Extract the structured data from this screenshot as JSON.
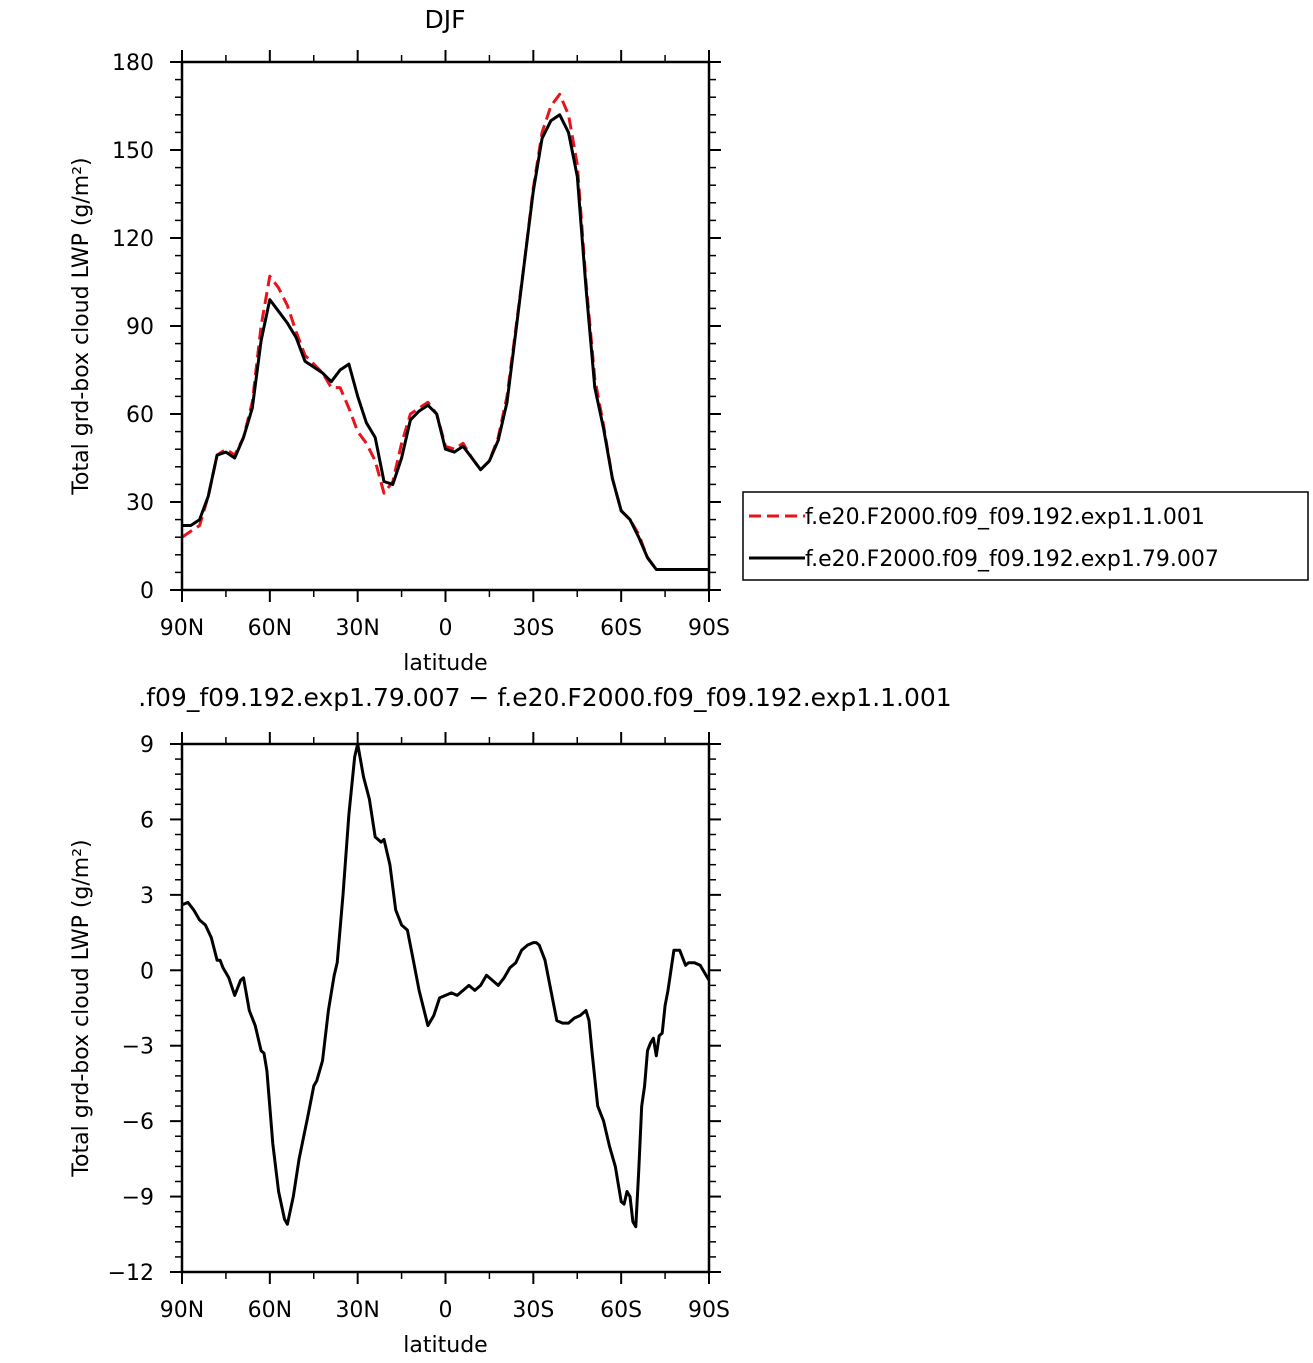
{
  "chart_data": [
    {
      "type": "line",
      "title": "DJF",
      "xlabel": "latitude",
      "ylabel": "Total grd-box cloud LWP (g/m²)",
      "xlim": [
        90,
        -90
      ],
      "ylim": [
        0,
        180
      ],
      "x_tick_values": [
        90,
        60,
        30,
        0,
        -30,
        -60,
        -90
      ],
      "x_tick_labels": [
        "90N",
        "60N",
        "30N",
        "0",
        "30S",
        "60S",
        "90S"
      ],
      "y_tick_values": [
        0,
        30,
        60,
        90,
        120,
        150,
        180
      ],
      "y_tick_labels": [
        "0",
        "30",
        "60",
        "90",
        "120",
        "150",
        "180"
      ],
      "legend_position": "right",
      "series": [
        {
          "name": "f.e20.F2000.f09_f09.192.exp1.1.001",
          "color": "#e8141c",
          "dash": "dashed",
          "x": [
            90,
            87,
            84,
            81,
            78,
            75,
            72,
            69,
            66,
            63,
            60,
            57,
            54,
            51,
            48,
            45,
            42,
            39,
            36,
            33,
            30,
            27,
            24,
            21,
            18,
            15,
            12,
            9,
            6,
            3,
            0,
            -3,
            -6,
            -9,
            -12,
            -15,
            -18,
            -21,
            -24,
            -27,
            -30,
            -33,
            -36,
            -39,
            -42,
            -45,
            -48,
            -51,
            -54,
            -57,
            -60,
            -63,
            -66,
            -69,
            -72,
            -75,
            -78,
            -81,
            -84,
            -87,
            -90
          ],
          "y": [
            18,
            20,
            22,
            32,
            46,
            48,
            46,
            52,
            64,
            90,
            107,
            103,
            97,
            88,
            80,
            77,
            74,
            69,
            69,
            62,
            54,
            50,
            44,
            33,
            37,
            50,
            60,
            62,
            64,
            60,
            49,
            48,
            50,
            45,
            41,
            44,
            52,
            66,
            89,
            112,
            137,
            156,
            165,
            169,
            162,
            145,
            105,
            72,
            56,
            38,
            27,
            24,
            19,
            11,
            7,
            7,
            7,
            7,
            7,
            7,
            7
          ]
        },
        {
          "name": "f.e20.F2000.f09_f09.192.exp1.79.007",
          "color": "#000000",
          "dash": "solid",
          "x": [
            90,
            87,
            84,
            81,
            78,
            75,
            72,
            69,
            66,
            63,
            60,
            57,
            54,
            51,
            48,
            45,
            42,
            39,
            36,
            33,
            30,
            27,
            24,
            21,
            18,
            15,
            12,
            9,
            6,
            3,
            0,
            -3,
            -6,
            -9,
            -12,
            -15,
            -18,
            -21,
            -24,
            -27,
            -30,
            -33,
            -36,
            -39,
            -42,
            -45,
            -48,
            -51,
            -54,
            -57,
            -60,
            -63,
            -66,
            -69,
            -72,
            -75,
            -78,
            -81,
            -84,
            -87,
            -90
          ],
          "y": [
            22,
            22,
            24,
            32,
            46,
            47,
            45,
            52,
            62,
            85,
            99,
            95,
            91,
            86,
            78,
            76,
            74,
            71,
            75,
            77,
            66,
            57,
            52,
            37,
            36,
            45,
            58,
            61,
            63,
            60,
            48,
            47,
            49,
            45,
            41,
            44,
            51,
            64,
            88,
            112,
            136,
            154,
            160,
            162,
            156,
            141,
            103,
            69,
            55,
            38,
            27,
            24,
            18,
            11,
            7,
            7,
            7,
            7,
            7,
            7,
            7
          ]
        }
      ]
    },
    {
      "type": "line",
      "title": ".f09_f09.192.exp1.79.007 − f.e20.F2000.f09_f09.192.exp1.1.001",
      "xlabel": "latitude",
      "ylabel": "Total grd-box cloud LWP (g/m²)",
      "xlim": [
        90,
        -90
      ],
      "ylim": [
        -12,
        9
      ],
      "x_tick_values": [
        90,
        60,
        30,
        0,
        -30,
        -60,
        -90
      ],
      "x_tick_labels": [
        "90N",
        "60N",
        "30N",
        "0",
        "30S",
        "60S",
        "90S"
      ],
      "y_tick_values": [
        -12,
        -9,
        -6,
        -3,
        0,
        3,
        6,
        9
      ],
      "y_tick_labels": [
        "−12",
        "−9",
        "−6",
        "−3",
        "0",
        "3",
        "6",
        "9"
      ],
      "series": [
        {
          "color": "#000000",
          "dash": "solid",
          "x": [
            90,
            88,
            86,
            84,
            82,
            80,
            78,
            77,
            76,
            74,
            72,
            70,
            69,
            67,
            65,
            63,
            62,
            61,
            59,
            57,
            55,
            54,
            52,
            50,
            47,
            45,
            44,
            42,
            40,
            38,
            37,
            35,
            33,
            31,
            30,
            28,
            26,
            24,
            22,
            21,
            19,
            17,
            15,
            13,
            11,
            9,
            6,
            4,
            2,
            0,
            -2,
            -4,
            -6,
            -8,
            -10,
            -12,
            -14,
            -16,
            -18,
            -20,
            -22,
            -24,
            -26,
            -28,
            -30,
            -31,
            -32,
            -34,
            -36,
            -38,
            -40,
            -42,
            -44,
            -46,
            -48,
            -49,
            -50,
            -52,
            -54,
            -56,
            -58,
            -60,
            -61,
            -62,
            -63,
            -64,
            -65,
            -66,
            -67,
            -68,
            -69,
            -70,
            -71,
            -72,
            -73,
            -74,
            -75,
            -76,
            -78,
            -80,
            -81,
            -82,
            -83,
            -85,
            -87,
            -88,
            -90
          ],
          "y": [
            2.6,
            2.7,
            2.4,
            2.0,
            1.8,
            1.3,
            0.4,
            0.4,
            0.1,
            -0.3,
            -1.0,
            -0.4,
            -0.3,
            -1.6,
            -2.2,
            -3.2,
            -3.3,
            -4.0,
            -6.9,
            -8.8,
            -9.9,
            -10.1,
            -9.0,
            -7.5,
            -5.8,
            -4.6,
            -4.4,
            -3.6,
            -1.6,
            -0.2,
            0.3,
            3.0,
            6.2,
            8.5,
            9.0,
            7.7,
            6.8,
            5.3,
            5.1,
            5.2,
            4.2,
            2.4,
            1.8,
            1.6,
            0.4,
            -0.8,
            -2.2,
            -1.8,
            -1.1,
            -1.0,
            -0.9,
            -1.0,
            -0.8,
            -0.6,
            -0.8,
            -0.6,
            -0.2,
            -0.4,
            -0.6,
            -0.3,
            0.1,
            0.3,
            0.8,
            1.0,
            1.1,
            1.1,
            1.0,
            0.4,
            -0.8,
            -2.0,
            -2.1,
            -2.1,
            -1.9,
            -1.8,
            -1.6,
            -2.0,
            -3.2,
            -5.4,
            -6.0,
            -7.0,
            -7.8,
            -9.2,
            -9.3,
            -8.8,
            -9.0,
            -10.0,
            -10.2,
            -8.0,
            -5.4,
            -4.6,
            -3.2,
            -2.9,
            -2.7,
            -3.4,
            -2.6,
            -2.5,
            -1.4,
            -0.8,
            0.8,
            0.8,
            0.5,
            0.2,
            0.3,
            0.3,
            0.2,
            0.0,
            -0.4
          ]
        }
      ]
    }
  ]
}
